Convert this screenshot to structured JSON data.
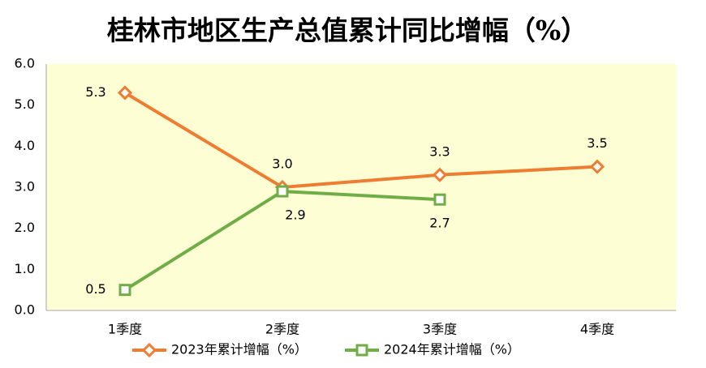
{
  "chart_data": {
    "type": "line",
    "title": "桂林市地区生产总值累计同比增幅（%）",
    "categories": [
      "1季度",
      "2季度",
      "3季度",
      "4季度"
    ],
    "series": [
      {
        "name": "2023年累计增幅（%）",
        "color": "#ed7d31",
        "marker": "diamond",
        "values": [
          5.3,
          3,
          3.3,
          3.5
        ],
        "value_labels": [
          "5.3",
          "3.0",
          "3.3",
          "3.5"
        ]
      },
      {
        "name": "2024年累计增幅（%）",
        "color": "#70ad47",
        "marker": "square",
        "values": [
          0.5,
          2.9,
          2.7,
          null
        ],
        "value_labels": [
          "0.5",
          "2.9",
          "2.7",
          null
        ]
      }
    ],
    "ylim": [
      0,
      6
    ],
    "yticks": [
      {
        "value": 0,
        "label": "0.0"
      },
      {
        "value": 1,
        "label": "1.0"
      },
      {
        "value": 2,
        "label": "2.0"
      },
      {
        "value": 3,
        "label": "3.0"
      },
      {
        "value": 4,
        "label": "4.0"
      },
      {
        "value": 5,
        "label": "5.0"
      },
      {
        "value": 6,
        "label": "6.0"
      }
    ],
    "grid": false,
    "legend": "bottom"
  }
}
